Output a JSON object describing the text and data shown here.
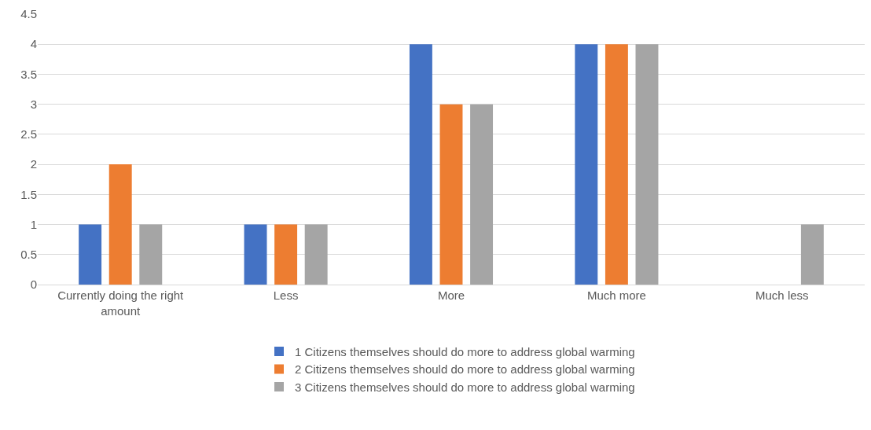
{
  "chart_data": {
    "type": "bar",
    "categories": [
      "Currently doing the right amount",
      "Less",
      "More",
      "Much more",
      "Much less"
    ],
    "series": [
      {
        "name": "1 Citizens themselves should do more to address global warming",
        "color": "#4472c4",
        "values": [
          1,
          1,
          4,
          4,
          0
        ]
      },
      {
        "name": "2 Citizens themselves should do more to address global warming",
        "color": "#ed7d31",
        "values": [
          2,
          1,
          3,
          4,
          0
        ]
      },
      {
        "name": "3 Citizens themselves should do more to address global warming",
        "color": "#a5a5a5",
        "values": [
          1,
          1,
          3,
          4,
          1
        ]
      }
    ],
    "ylim": [
      0,
      4.5
    ],
    "yticks": [
      0,
      0.5,
      1,
      1.5,
      2,
      2.5,
      3,
      3.5,
      4,
      4.5
    ],
    "grid": "y",
    "legend": "bottom"
  }
}
